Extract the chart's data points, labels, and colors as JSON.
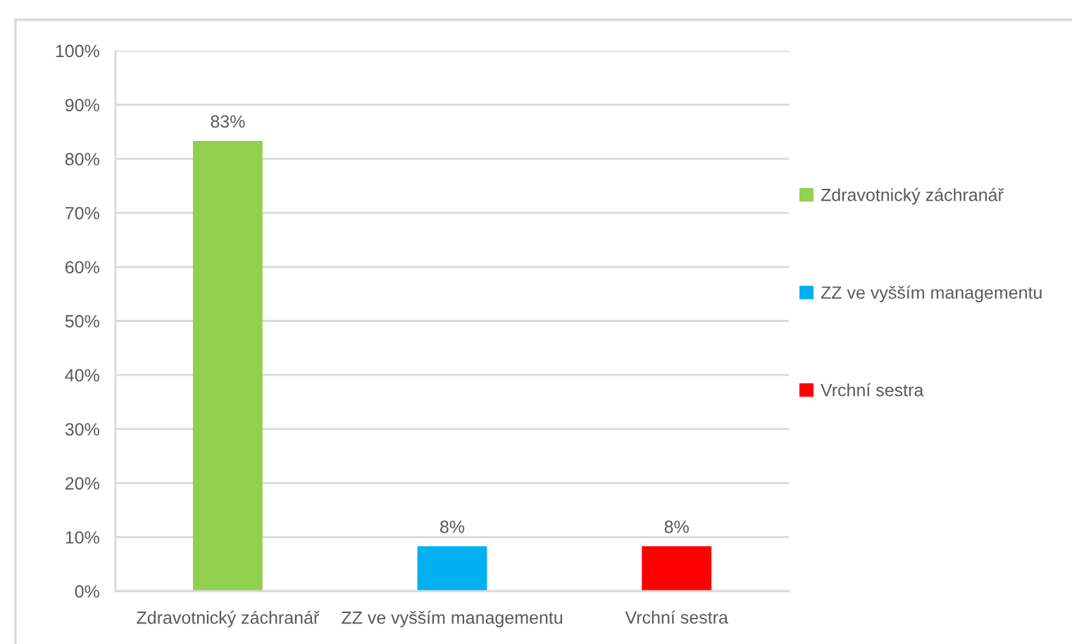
{
  "chart_data": {
    "type": "bar",
    "categories": [
      "Zdravotnický záchranář",
      "ZZ ve vyšším managementu",
      "Vrchní sestra"
    ],
    "series": [
      {
        "name": "Zdravotnický záchranář",
        "color": "#92d050",
        "values": [
          83.3,
          null,
          null
        ],
        "value_labels": [
          "83%",
          null,
          null
        ]
      },
      {
        "name": "ZZ ve vyšším managementu",
        "color": "#00b0f0",
        "values": [
          null,
          8.3,
          null
        ],
        "value_labels": [
          null,
          "8%",
          null
        ]
      },
      {
        "name": "Vrchní sestra",
        "color": "#ff0000",
        "values": [
          null,
          null,
          8.3
        ],
        "value_labels": [
          null,
          null,
          "8%"
        ]
      }
    ],
    "stacked": true,
    "ylim": [
      0,
      100
    ],
    "yticks": [
      {
        "value": 0,
        "label": "0%"
      },
      {
        "value": 10,
        "label": "10%"
      },
      {
        "value": 20,
        "label": "20%"
      },
      {
        "value": 30,
        "label": "30%"
      },
      {
        "value": 40,
        "label": "40%"
      },
      {
        "value": 50,
        "label": "50%"
      },
      {
        "value": 60,
        "label": "60%"
      },
      {
        "value": 70,
        "label": "70%"
      },
      {
        "value": 80,
        "label": "80%"
      },
      {
        "value": 90,
        "label": "90%"
      },
      {
        "value": 100,
        "label": "100%"
      }
    ],
    "grid": "y",
    "legend": "right"
  }
}
